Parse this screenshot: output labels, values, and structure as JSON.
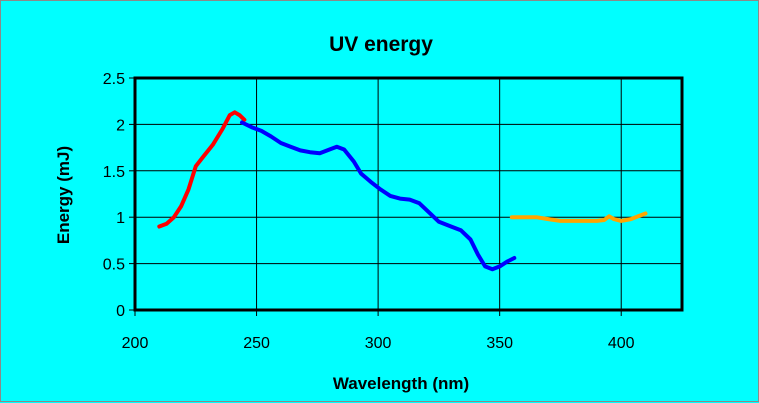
{
  "chart_data": {
    "type": "line",
    "title": "UV energy",
    "xlabel": "Wavelength (nm)",
    "ylabel": "Energy (mJ)",
    "xlim": [
      200,
      425
    ],
    "ylim": [
      0,
      2.5
    ],
    "x_ticks": [
      "200",
      "250",
      "300",
      "350",
      "400"
    ],
    "y_ticks": [
      "0",
      "0.5",
      "1",
      "1.5",
      "2",
      "2.5"
    ],
    "grid": true,
    "legend": "none",
    "series": [
      {
        "color": "#ff0000",
        "points": [
          [
            210,
            0.9
          ],
          [
            213,
            0.93
          ],
          [
            216,
            1.0
          ],
          [
            219,
            1.12
          ],
          [
            222,
            1.3
          ],
          [
            225,
            1.55
          ],
          [
            228,
            1.65
          ],
          [
            232,
            1.78
          ],
          [
            236,
            1.95
          ],
          [
            239,
            2.1
          ],
          [
            241,
            2.13
          ],
          [
            243,
            2.1
          ],
          [
            245,
            2.05
          ]
        ]
      },
      {
        "color": "#0000ff",
        "points": [
          [
            244,
            2.02
          ],
          [
            248,
            1.97
          ],
          [
            252,
            1.93
          ],
          [
            256,
            1.87
          ],
          [
            260,
            1.8
          ],
          [
            264,
            1.76
          ],
          [
            268,
            1.72
          ],
          [
            272,
            1.7
          ],
          [
            276,
            1.69
          ],
          [
            280,
            1.73
          ],
          [
            283,
            1.76
          ],
          [
            286,
            1.73
          ],
          [
            290,
            1.6
          ],
          [
            293,
            1.47
          ],
          [
            297,
            1.38
          ],
          [
            301,
            1.3
          ],
          [
            305,
            1.23
          ],
          [
            309,
            1.2
          ],
          [
            313,
            1.19
          ],
          [
            317,
            1.15
          ],
          [
            321,
            1.05
          ],
          [
            325,
            0.95
          ],
          [
            330,
            0.9
          ],
          [
            334,
            0.86
          ],
          [
            338,
            0.76
          ],
          [
            341,
            0.6
          ],
          [
            344,
            0.47
          ],
          [
            347,
            0.44
          ],
          [
            350,
            0.47
          ],
          [
            353,
            0.52
          ],
          [
            356,
            0.56
          ]
        ]
      },
      {
        "color": "#ffa500",
        "points": [
          [
            355,
            1.0
          ],
          [
            360,
            1.0
          ],
          [
            365,
            1.0
          ],
          [
            370,
            0.98
          ],
          [
            375,
            0.96
          ],
          [
            380,
            0.96
          ],
          [
            385,
            0.96
          ],
          [
            390,
            0.96
          ],
          [
            393,
            0.97
          ],
          [
            395,
            1.01
          ],
          [
            397,
            0.98
          ],
          [
            400,
            0.96
          ],
          [
            404,
            0.98
          ],
          [
            407,
            1.01
          ],
          [
            410,
            1.04
          ]
        ]
      }
    ]
  }
}
